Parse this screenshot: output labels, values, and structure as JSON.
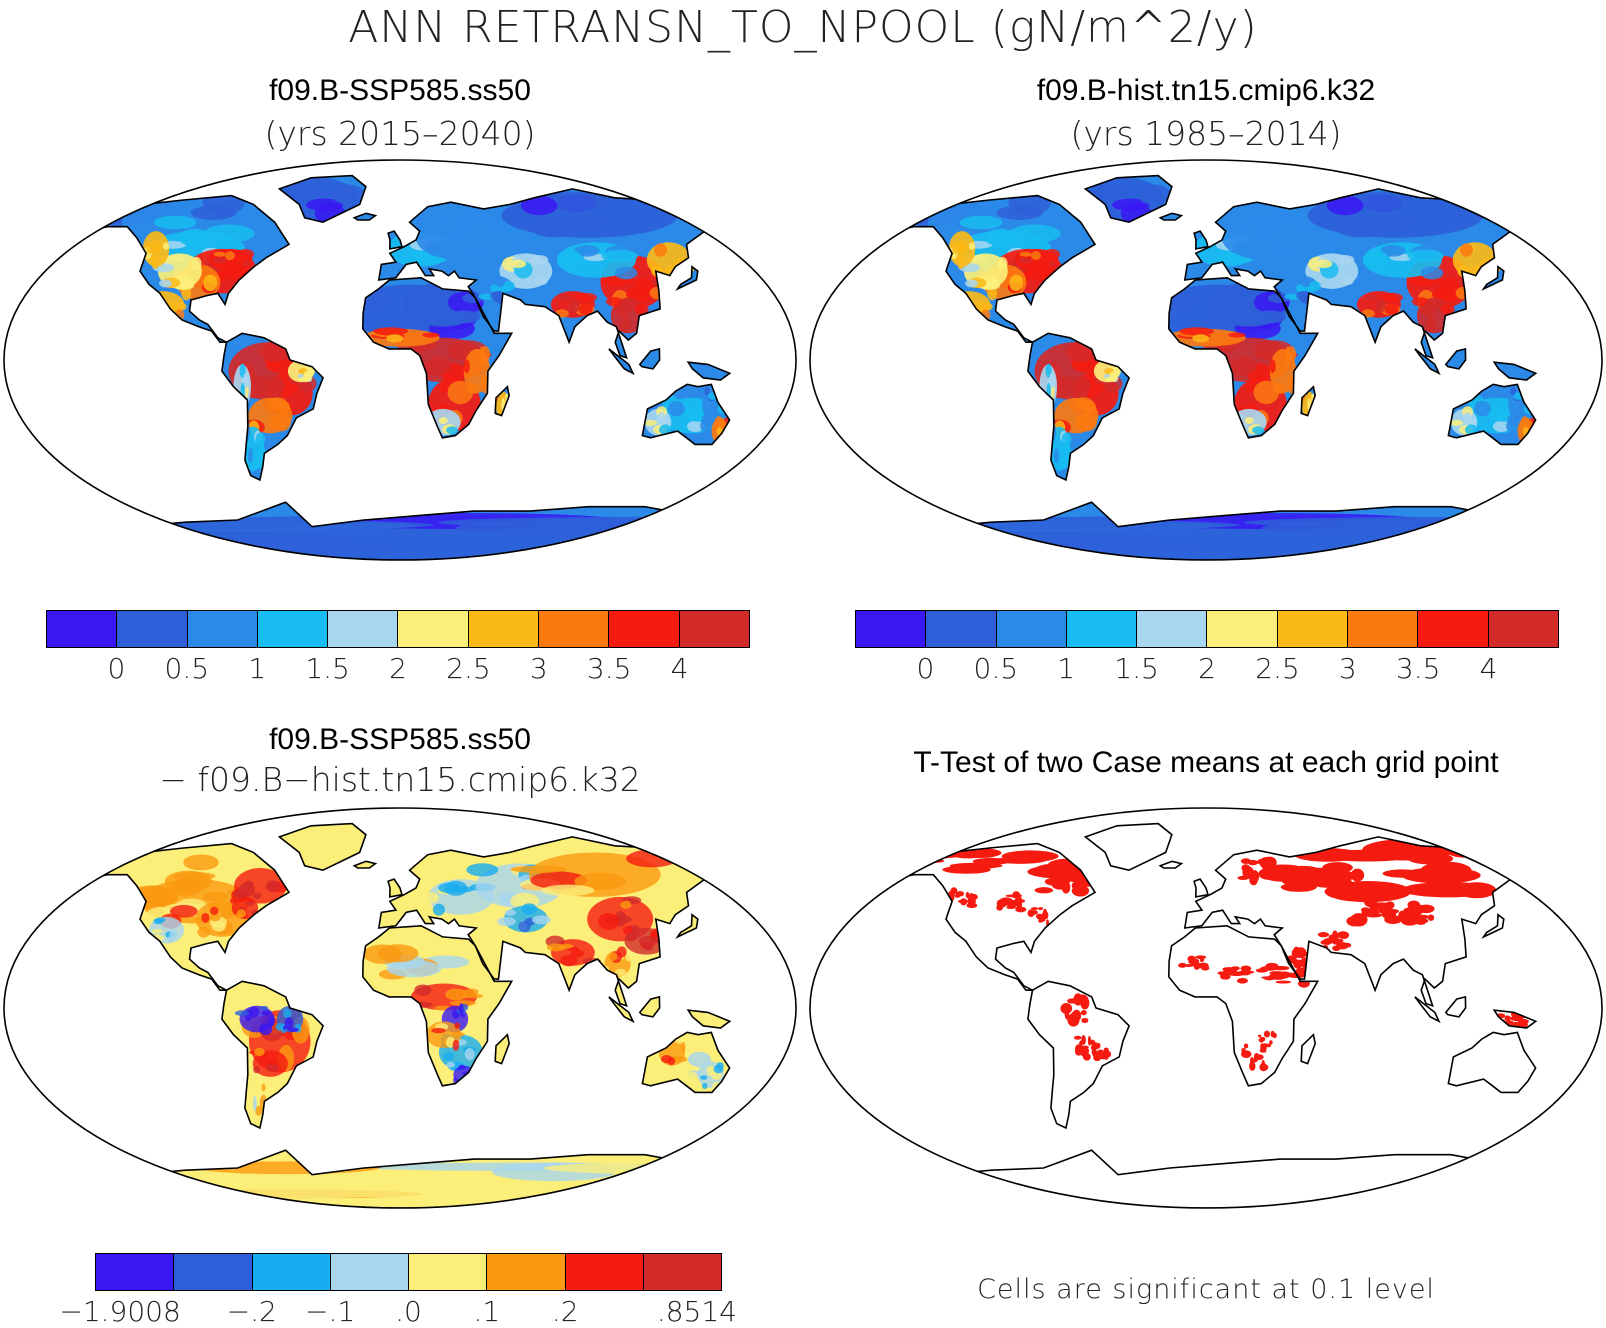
{
  "title": "ANN RETRANSN_TO_NPOOL (gN/m^2/y)",
  "panels": [
    {
      "id": "tl",
      "title": "f09.B-SSP585.ss50",
      "subtitle": "(yrs 2015–2040)",
      "kind": "abs"
    },
    {
      "id": "tr",
      "title": "f09.B-hist.tn15.cmip6.k32",
      "subtitle": "(yrs 1985–2014)",
      "kind": "abs"
    },
    {
      "id": "bl",
      "title": "f09.B-SSP585.ss50",
      "subtitle": "− f09.B−hist.tn15.cmip6.k32",
      "kind": "diff"
    },
    {
      "id": "br",
      "title": "T-Test of two Case means at each grid point",
      "subtitle": "",
      "kind": "ttest"
    }
  ],
  "colorbar_abs": {
    "colors": [
      "#3a18f2",
      "#2e5fd8",
      "#2b8ae8",
      "#18bcf0",
      "#a8d6f0",
      "#fbef7a",
      "#fbb918",
      "#fb7a10",
      "#f51b10",
      "#d32a2a"
    ],
    "labels": [
      "0",
      "0.5",
      "1",
      "1.5",
      "2",
      "2.5",
      "3",
      "3.5",
      "4"
    ]
  },
  "colorbar_diff": {
    "colors": [
      "#3a18f2",
      "#2e5fd8",
      "#18acf0",
      "#a8d6f0",
      "#fbef7a",
      "#fb9a10",
      "#f51b10",
      "#d32a2a"
    ],
    "labels": [
      "−1.9008",
      "−.2",
      "−.1",
      ".0",
      ".1",
      ".2",
      ".8514"
    ]
  },
  "ttest_note": "Cells are significant at 0.1 level",
  "colors": {
    "ocean": "#ffffff",
    "coast": "#000000",
    "significant": "#f51b10"
  }
}
